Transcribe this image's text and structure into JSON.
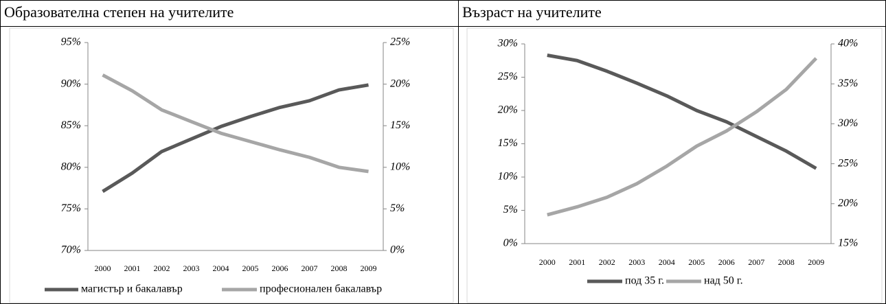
{
  "chart_data": [
    {
      "type": "line",
      "title": "Образователна степен на учителите",
      "categories": [
        "2000",
        "2001",
        "2002",
        "2003",
        "2004",
        "2005",
        "2006",
        "2007",
        "2008",
        "2009"
      ],
      "series": [
        {
          "name": "магистър и бакалавър",
          "color": "#595959",
          "values": [
            77.1,
            79.3,
            81.9,
            83.4,
            84.9,
            86.1,
            87.2,
            88.0,
            89.3,
            89.9
          ]
        },
        {
          "name": "професионален бакалавър",
          "color": "#a6a6a6",
          "axis": "y2",
          "values": [
            21.1,
            19.2,
            16.9,
            15.5,
            14.1,
            13.1,
            12.1,
            11.2,
            10.0,
            9.5
          ]
        }
      ],
      "ylim": [
        70,
        95
      ],
      "yticks": [
        {
          "value": 70,
          "label": "70%"
        },
        {
          "value": 75,
          "label": "75%"
        },
        {
          "value": 80,
          "label": "80%"
        },
        {
          "value": 85,
          "label": "85%"
        },
        {
          "value": 90,
          "label": "90%"
        },
        {
          "value": 95,
          "label": "95%"
        }
      ],
      "y2lim": [
        0,
        25
      ],
      "y2ticks": [
        {
          "value": 0,
          "label": "0%"
        },
        {
          "value": 5,
          "label": "5%"
        },
        {
          "value": 10,
          "label": "10%"
        },
        {
          "value": 15,
          "label": "15%"
        },
        {
          "value": 20,
          "label": "20%"
        },
        {
          "value": 25,
          "label": "25%"
        }
      ],
      "legend": "bottom"
    },
    {
      "type": "line",
      "title": "Възраст на учителите",
      "categories": [
        "2000",
        "2001",
        "2002",
        "2003",
        "2004",
        "2005",
        "2006",
        "2007",
        "2008",
        "2009"
      ],
      "series": [
        {
          "name": "под 35 г.",
          "color": "#595959",
          "values": [
            28.3,
            27.5,
            25.9,
            24.1,
            22.2,
            20.0,
            18.3,
            16.1,
            13.9,
            11.3
          ]
        },
        {
          "name": "над 50 г.",
          "color": "#a6a6a6",
          "axis": "y2",
          "values": [
            18.6,
            19.6,
            20.8,
            22.5,
            24.7,
            27.2,
            29.1,
            31.5,
            34.3,
            38.2
          ]
        }
      ],
      "ylim": [
        0,
        30
      ],
      "yticks": [
        {
          "value": 0,
          "label": "0%"
        },
        {
          "value": 5,
          "label": "5%"
        },
        {
          "value": 10,
          "label": "10%"
        },
        {
          "value": 15,
          "label": "15%"
        },
        {
          "value": 20,
          "label": "20%"
        },
        {
          "value": 25,
          "label": "25%"
        },
        {
          "value": 30,
          "label": "30%"
        }
      ],
      "y2lim": [
        15,
        40
      ],
      "y2ticks": [
        {
          "value": 15,
          "label": "15%"
        },
        {
          "value": 20,
          "label": "20%"
        },
        {
          "value": 25,
          "label": "25%"
        },
        {
          "value": 30,
          "label": "30%"
        },
        {
          "value": 35,
          "label": "35%"
        },
        {
          "value": 40,
          "label": "40%"
        }
      ],
      "legend": "bottom"
    }
  ]
}
